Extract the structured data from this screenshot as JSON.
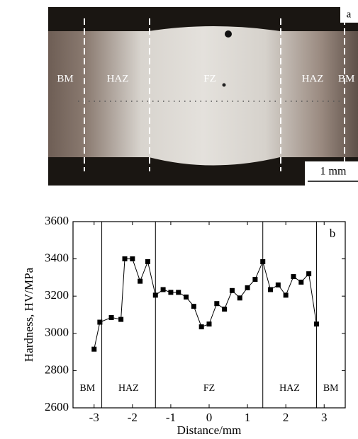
{
  "figure_a": {
    "label": "a",
    "regions": [
      "BM",
      "HAZ",
      "FZ",
      "HAZ",
      "BM"
    ],
    "scale_bar": "1 mm"
  },
  "chart_data": {
    "type": "line",
    "panel_label": "b",
    "x_label": "Distance/mm",
    "y_label": "Hardness, HV/MPa",
    "x": [
      -3.0,
      -2.85,
      -2.55,
      -2.3,
      -2.2,
      -2.0,
      -1.8,
      -1.6,
      -1.4,
      -1.2,
      -1.0,
      -0.8,
      -0.6,
      -0.4,
      -0.2,
      0.0,
      0.2,
      0.4,
      0.6,
      0.8,
      1.0,
      1.2,
      1.4,
      1.6,
      1.8,
      2.0,
      2.2,
      2.4,
      2.6,
      2.8
    ],
    "series": [
      {
        "color": "#000000",
        "values": [
          2915,
          3060,
          3085,
          3075,
          3400,
          3400,
          3280,
          3385,
          3205,
          3235,
          3220,
          3220,
          3195,
          3145,
          3035,
          3050,
          3160,
          3130,
          3230,
          3190,
          3245,
          3290,
          3385,
          3235,
          3260,
          3205,
          3305,
          3275,
          3320,
          3050
        ]
      }
    ],
    "xlim": [
      -3.55,
      3.55
    ],
    "ylim": [
      2600,
      3600
    ],
    "xticks": [
      -3,
      -2,
      -1,
      0,
      1,
      2,
      3
    ],
    "yticks": [
      2600,
      2800,
      3000,
      3200,
      3400,
      3600
    ],
    "zone_boundaries": [
      -2.8,
      -1.4,
      1.4,
      2.8
    ],
    "zone_labels": [
      "BM",
      "HAZ",
      "FZ",
      "HAZ",
      "BM"
    ]
  }
}
